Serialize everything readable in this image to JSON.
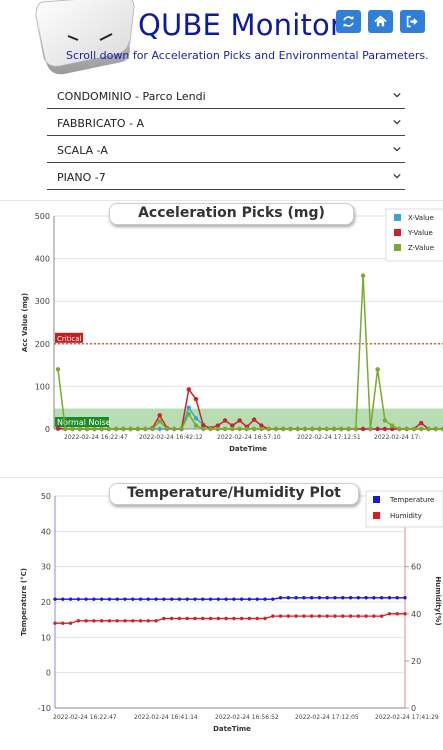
{
  "app": {
    "title": "QUBE Monitor",
    "subtitle": "Scroll down for Acceleration Picks and Environmental Parameters."
  },
  "header_buttons": [
    {
      "name": "refresh-button",
      "icon": "refresh-icon"
    },
    {
      "name": "home-button",
      "icon": "home-icon"
    },
    {
      "name": "logout-button",
      "icon": "sign-out-icon"
    }
  ],
  "filters": [
    {
      "name": "condominio-select",
      "value": "CONDOMINIO - Parco Lendi"
    },
    {
      "name": "fabbricato-select",
      "value": "FABBRICATO - A"
    },
    {
      "name": "scala-select",
      "value": "SCALA -A"
    },
    {
      "name": "piano-select",
      "value": "PIANO -7"
    }
  ],
  "colors": {
    "accent": "#2f7fd9",
    "title": "#0d1b9e",
    "x_series": "#3aa7c8",
    "y_series": "#c8242c",
    "z_series": "#7aaa2e",
    "critical": "#d82a2a",
    "normal_band": "#b9ddb3",
    "temperature": "#1a1ad6",
    "humidity": "#d81f1f"
  },
  "chart_data": [
    {
      "type": "line",
      "title": "Acceleration Picks (mg)",
      "xlabel": "DateTime",
      "ylabel": "Acc Value (mg)",
      "ylim": [
        0,
        500
      ],
      "yticks": [
        0,
        100,
        200,
        300,
        400,
        500
      ],
      "xticks": [
        "2022-02-24 16:22:47",
        "2022-02-24 16:42:12",
        "2022-02-24 16:57:10",
        "2022-02-24 17:12:51",
        "2022-02-24 17:"
      ],
      "grid": true,
      "legend_position": "top-right",
      "annotations": {
        "critical_label": "Critical",
        "critical_value": 200,
        "normal_label": "Normal Noise",
        "normal_range": [
          0,
          48
        ]
      },
      "series": [
        {
          "name": "X-Value",
          "values": [
            0,
            0,
            0,
            0,
            0,
            0,
            0,
            0,
            0,
            0,
            0,
            0,
            0,
            0,
            0,
            0,
            0,
            0,
            50,
            25,
            10,
            0,
            0,
            0,
            0,
            0,
            0,
            0,
            0,
            0,
            0,
            0,
            0,
            0,
            0,
            0,
            0,
            0,
            0,
            0,
            0,
            0,
            0,
            0,
            0,
            0,
            0,
            0,
            0,
            0,
            0,
            0,
            0,
            0
          ]
        },
        {
          "name": "Y-Value",
          "values": [
            2,
            0,
            0,
            0,
            0,
            0,
            0,
            0,
            0,
            0,
            0,
            0,
            0,
            2,
            32,
            2,
            0,
            0,
            93,
            70,
            8,
            2,
            8,
            20,
            8,
            20,
            5,
            22,
            8,
            0,
            0,
            0,
            0,
            0,
            0,
            0,
            0,
            0,
            0,
            0,
            0,
            0,
            0,
            0,
            0,
            0,
            0,
            0,
            0,
            0,
            14,
            0,
            0,
            0
          ]
        },
        {
          "name": "Z-Value",
          "values": [
            140,
            0,
            0,
            0,
            0,
            0,
            0,
            0,
            0,
            0,
            0,
            0,
            0,
            0,
            18,
            0,
            0,
            0,
            35,
            8,
            0,
            0,
            0,
            0,
            0,
            0,
            0,
            0,
            0,
            0,
            0,
            0,
            0,
            0,
            0,
            0,
            0,
            0,
            0,
            0,
            0,
            0,
            360,
            0,
            140,
            20,
            8,
            0,
            0,
            0,
            0,
            0,
            0,
            0
          ]
        }
      ]
    },
    {
      "type": "line",
      "title": "Temperature/Humidity Plot",
      "xlabel": "DateTime",
      "ylabel": "Temperature (°C)",
      "y2label": "Humidity(%)",
      "ylim": [
        -10,
        50
      ],
      "yticks": [
        -10,
        0,
        10,
        20,
        30,
        40,
        50
      ],
      "y2lim": [
        0,
        90
      ],
      "y2ticks": [
        0,
        20,
        40,
        60,
        80
      ],
      "xticks": [
        "2022-02-24 16:22:47",
        "2022-02-24 16:41:14",
        "2022-02-24 16:56:52",
        "2022-02-24 17:12:05",
        "2022-02-24 17:41:29"
      ],
      "grid": true,
      "legend_position": "top-right",
      "series": [
        {
          "name": "Temperature",
          "axis": "left",
          "values": [
            20.8,
            20.8,
            20.8,
            20.8,
            20.8,
            20.8,
            20.8,
            20.8,
            20.8,
            20.8,
            20.8,
            20.8,
            20.8,
            20.8,
            20.8,
            20.8,
            20.8,
            20.8,
            20.8,
            20.8,
            20.8,
            20.8,
            20.8,
            20.8,
            20.8,
            20.8,
            20.8,
            20.8,
            20.8,
            21.2,
            21.2,
            21.2,
            21.2,
            21.2,
            21.2,
            21.2,
            21.2,
            21.2,
            21.2,
            21.2,
            21.2,
            21.2,
            21.2,
            21.2,
            21.2,
            21.2
          ]
        },
        {
          "name": "Humidity",
          "axis": "right",
          "values": [
            36,
            36,
            36,
            37,
            37,
            37,
            37,
            37,
            37,
            37,
            37,
            37,
            37,
            37,
            38,
            38,
            38,
            38,
            38,
            38,
            38,
            38,
            38,
            38,
            38,
            38,
            38,
            38,
            39,
            39,
            39,
            39,
            39,
            39,
            39,
            39,
            39,
            39,
            39,
            39,
            39,
            39,
            39,
            40,
            40,
            40
          ]
        }
      ]
    }
  ]
}
